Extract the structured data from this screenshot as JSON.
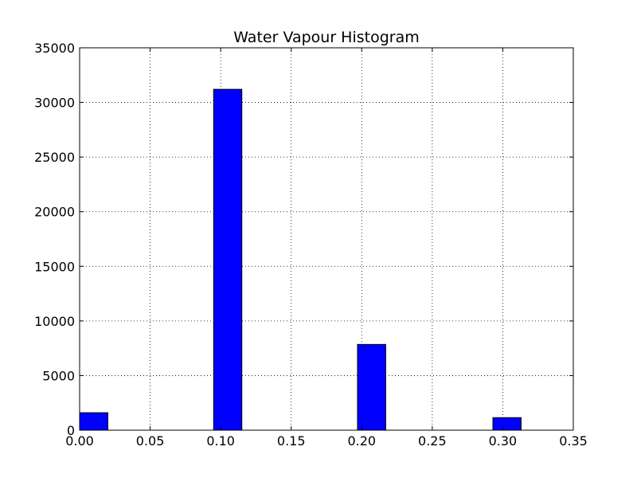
{
  "chart_data": {
    "type": "bar",
    "title": "Water Vapour Histogram",
    "xlabel": "",
    "ylabel": "",
    "xlim": [
      0.0,
      0.35
    ],
    "ylim": [
      0,
      35000
    ],
    "grid": true,
    "bar_color": "#0000ff",
    "bin_width": 0.02,
    "bins": [
      {
        "start": 0.0,
        "value": 1600
      },
      {
        "start": 0.02,
        "value": 0
      },
      {
        "start": 0.04,
        "value": 0
      },
      {
        "start": 0.06,
        "value": 0
      },
      {
        "start": 0.08,
        "value": 0
      },
      {
        "start": 0.095,
        "value": 31200
      },
      {
        "start": 0.115,
        "value": 0
      },
      {
        "start": 0.135,
        "value": 0
      },
      {
        "start": 0.155,
        "value": 0
      },
      {
        "start": 0.175,
        "value": 0
      },
      {
        "start": 0.197,
        "value": 7850
      },
      {
        "start": 0.217,
        "value": 0
      },
      {
        "start": 0.237,
        "value": 0
      },
      {
        "start": 0.257,
        "value": 0
      },
      {
        "start": 0.277,
        "value": 0
      },
      {
        "start": 0.293,
        "value": 1150
      }
    ],
    "x_ticks": [
      "0.00",
      "0.05",
      "0.10",
      "0.15",
      "0.20",
      "0.25",
      "0.30",
      "0.35"
    ],
    "x_tick_values": [
      0.0,
      0.05,
      0.1,
      0.15,
      0.2,
      0.25,
      0.3,
      0.35
    ],
    "y_ticks": [
      "0",
      "5000",
      "10000",
      "15000",
      "20000",
      "25000",
      "30000",
      "35000"
    ],
    "y_tick_values": [
      0,
      5000,
      10000,
      15000,
      20000,
      25000,
      30000,
      35000
    ]
  }
}
